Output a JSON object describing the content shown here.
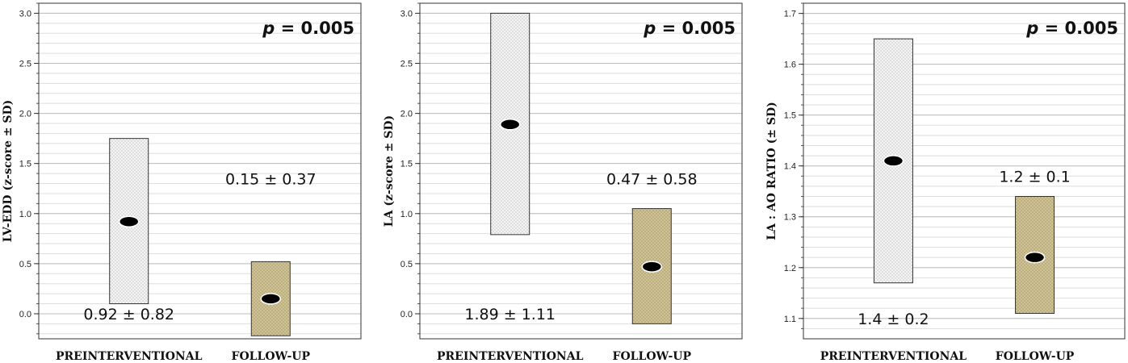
{
  "chart_data": [
    {
      "type": "range-bar",
      "ylabel": "LV-EDD (z-score ± SD)",
      "ylim": [
        -0.25,
        3.1
      ],
      "yticks": [
        "0.0",
        "0.5",
        "1.0",
        "1.5",
        "2.0",
        "2.5",
        "3.0"
      ],
      "ytick_values": [
        0,
        0.5,
        1,
        1.5,
        2,
        2.5,
        3
      ],
      "grid": true,
      "annotation_prefix": "p",
      "annotation_value": "= 0.005",
      "categories": [
        "PREINTERVENTIONAL",
        "FOLLOW-UP"
      ],
      "series": [
        {
          "mean": 0.92,
          "low": 0.1,
          "high": 1.75,
          "label": "0.92 ± 0.82",
          "label_y": 0.0,
          "fill": "#f4f4f4"
        },
        {
          "mean": 0.15,
          "low": -0.22,
          "high": 0.52,
          "label": "0.15 ± 0.37",
          "label_y": 1.35,
          "fill": "#cfc293"
        }
      ]
    },
    {
      "type": "range-bar",
      "ylabel": "LA (z-score ± SD)",
      "ylim": [
        -0.25,
        3.1
      ],
      "yticks": [
        "0.0",
        "0.5",
        "1.0",
        "1.5",
        "2.0",
        "2.5",
        "3.0"
      ],
      "ytick_values": [
        0,
        0.5,
        1,
        1.5,
        2,
        2.5,
        3
      ],
      "grid": true,
      "annotation_prefix": "p",
      "annotation_value": "= 0.005",
      "categories": [
        "PREINTERVENTIONAL",
        "FOLLOW-UP"
      ],
      "series": [
        {
          "mean": 1.89,
          "low": 0.79,
          "high": 3.0,
          "label": "1.89 ± 1.11",
          "label_y": 0.0,
          "fill": "#f4f4f4"
        },
        {
          "mean": 0.47,
          "low": -0.1,
          "high": 1.05,
          "label": "0.47 ± 0.58",
          "label_y": 1.35,
          "fill": "#cfc293"
        }
      ]
    },
    {
      "type": "range-bar",
      "ylabel": "LA : AO RATIO (± SD)",
      "ylim": [
        1.06,
        1.72
      ],
      "yticks": [
        "1.1",
        "1.2",
        "1.3",
        "1.4",
        "1.5",
        "1.6",
        "1.7"
      ],
      "ytick_values": [
        1.1,
        1.2,
        1.3,
        1.4,
        1.5,
        1.6,
        1.7
      ],
      "grid": true,
      "annotation_prefix": "p",
      "annotation_value": "= 0.005",
      "categories": [
        "PREINTERVENTIONAL",
        "FOLLOW-UP"
      ],
      "series": [
        {
          "mean": 1.41,
          "low": 1.17,
          "high": 1.65,
          "label": "1.4 ± 0.2",
          "label_y": 1.1,
          "fill": "#f4f4f4"
        },
        {
          "mean": 1.22,
          "low": 1.11,
          "high": 1.34,
          "label": "1.2 ± 0.1",
          "label_y": 1.38,
          "fill": "#cfc293"
        }
      ]
    }
  ]
}
